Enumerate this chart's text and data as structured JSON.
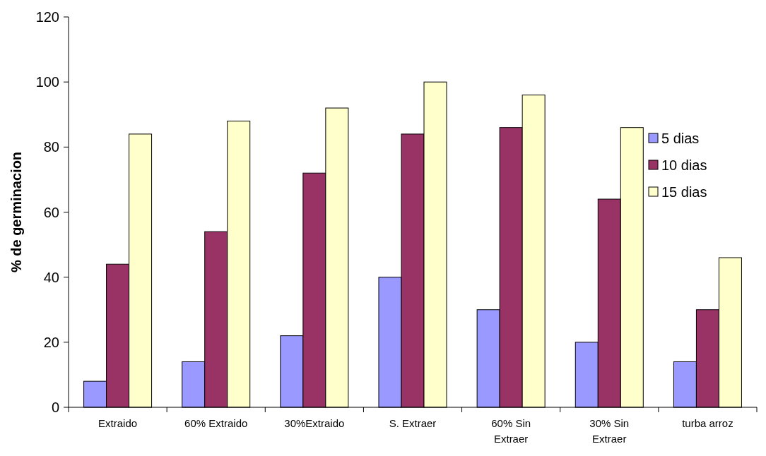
{
  "chart_data": {
    "type": "bar",
    "ylabel": "% de germinacion",
    "categories": [
      "Extraido",
      "60% Extraido",
      "30%Extraido",
      "S. Extraer",
      "60% Sin Extraer",
      "30% Sin Extraer",
      "turba arroz"
    ],
    "series": [
      {
        "name": "5 dias",
        "color": "#9999ff",
        "values": [
          8,
          14,
          22,
          40,
          30,
          20,
          14
        ]
      },
      {
        "name": "10 dias",
        "color": "#993366",
        "values": [
          44,
          54,
          72,
          84,
          86,
          64,
          30
        ]
      },
      {
        "name": "15 dias",
        "color": "#ffffcc",
        "values": [
          84,
          88,
          92,
          100,
          96,
          86,
          46
        ]
      }
    ],
    "ylim": [
      0,
      120
    ],
    "yticks": [
      0,
      20,
      40,
      60,
      80,
      100,
      120
    ],
    "legend": "right"
  }
}
